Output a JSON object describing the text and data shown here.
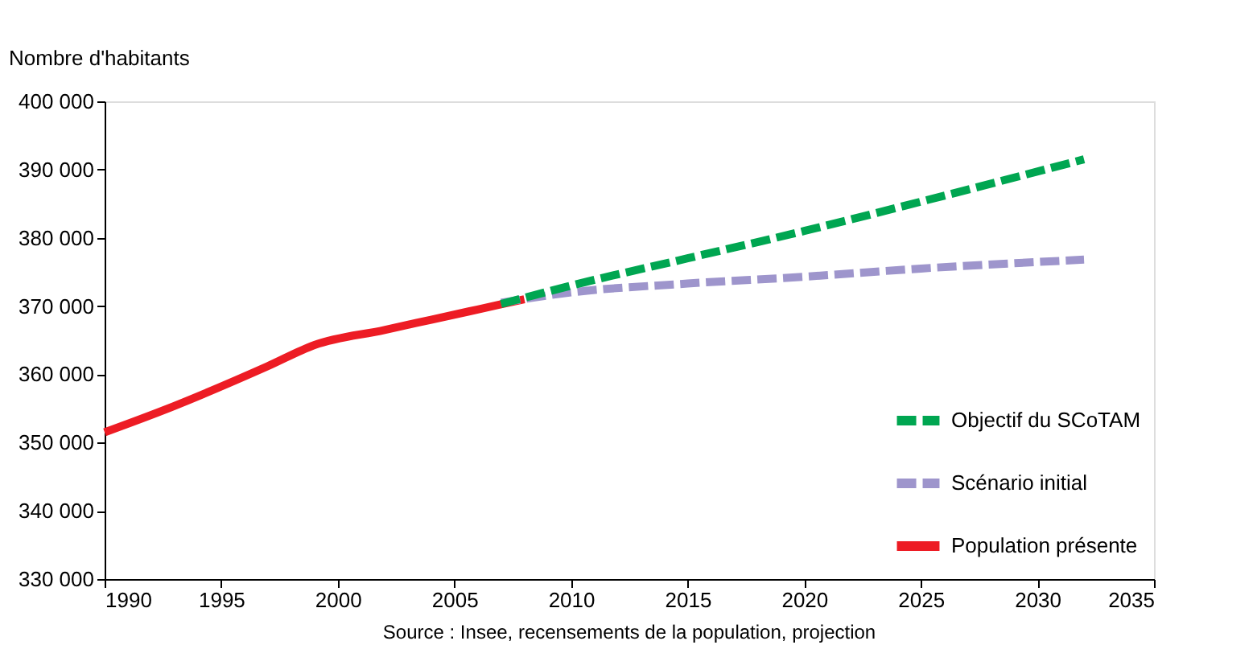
{
  "chart_data": {
    "type": "line",
    "ylabel": "Nombre d'habitants",
    "xlim": [
      1990,
      2035
    ],
    "xticks": [
      1990,
      1995,
      2000,
      2005,
      2010,
      2015,
      2020,
      2025,
      2030,
      2035
    ],
    "ylim": [
      330000,
      400000
    ],
    "yticks": [
      {
        "value": 330000,
        "label": "330 000"
      },
      {
        "value": 340000,
        "label": "340 000"
      },
      {
        "value": 350000,
        "label": "350 000"
      },
      {
        "value": 360000,
        "label": "360 000"
      },
      {
        "value": 370000,
        "label": "370 000"
      },
      {
        "value": 380000,
        "label": "380 000"
      },
      {
        "value": 390000,
        "label": "390 000"
      },
      {
        "value": 400000,
        "label": "400 000"
      }
    ],
    "grid": false,
    "legend": "bottom right",
    "marker": "none",
    "annotations": [
      "Source : Insee, recensements de la population, projection"
    ],
    "series": [
      {
        "name": "Objectif du SCoTAM",
        "color": "#00a651",
        "line_style": "dashed",
        "x": [
          2007,
          2010,
          2015,
          2020,
          2025,
          2032
        ],
        "values": [
          370300,
          373000,
          377000,
          381000,
          385300,
          391500
        ]
      },
      {
        "name": "Scénario initial",
        "color": "#9e95cc",
        "line_style": "dashed",
        "x": [
          2007,
          2010,
          2015,
          2020,
          2025,
          2032
        ],
        "values": [
          370500,
          372000,
          373300,
          374300,
          375500,
          376800
        ]
      },
      {
        "name": "Population présente",
        "color": "#ed1c24",
        "line_style": "solid",
        "x": [
          1990,
          1992.5,
          1997,
          1999,
          2002,
          2004,
          2006,
          2008
        ],
        "values": [
          351500,
          354700,
          361200,
          364300,
          366500,
          368000,
          369500,
          371000
        ]
      }
    ]
  }
}
